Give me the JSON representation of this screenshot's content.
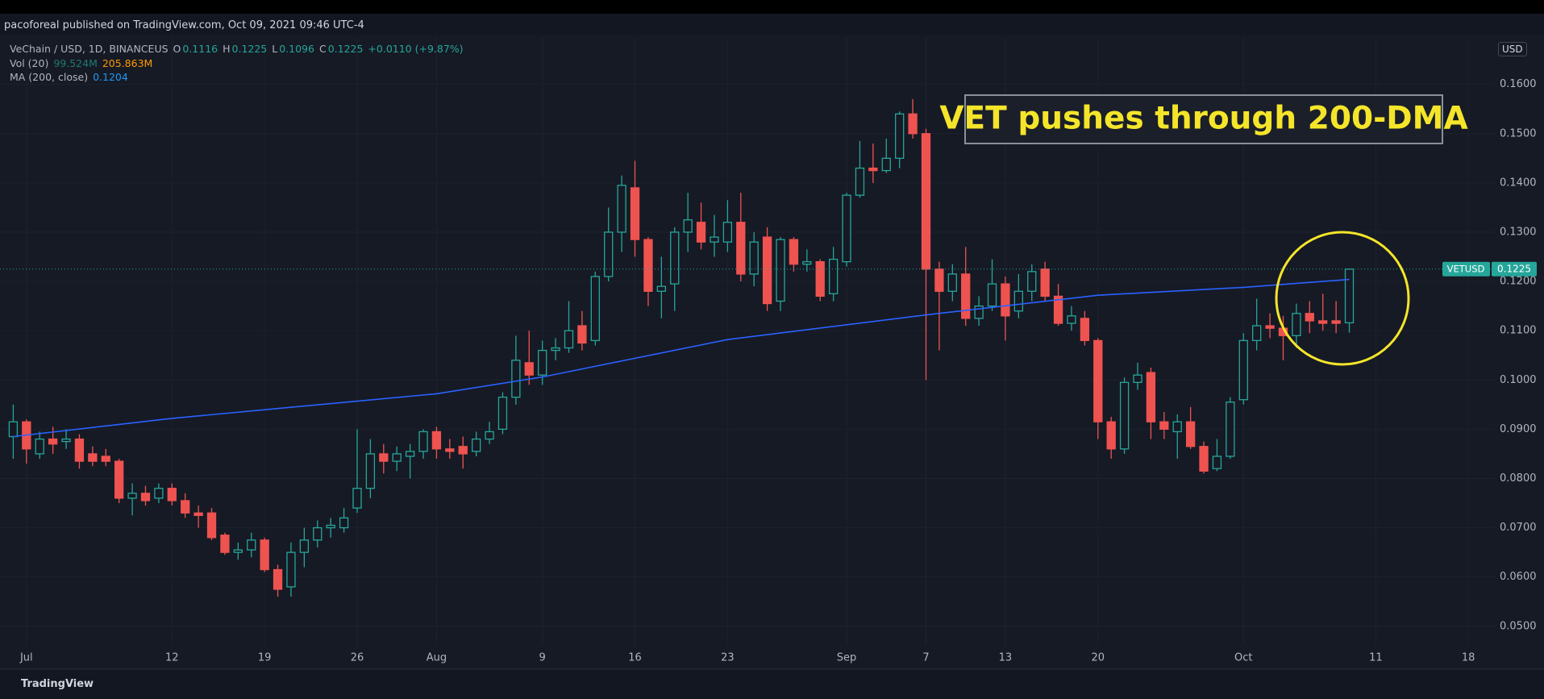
{
  "header": {
    "published": "pacoforeal published on TradingView.com, Oct 09, 2021 09:46 UTC-4",
    "symbol": "VeChain / USD, 1D, BINANCEUS",
    "ohlc_keys": [
      "O",
      "H",
      "L",
      "C"
    ],
    "change": "+0.0110 (+9.87%)",
    "volume_label": "Vol (20)",
    "volume_values": [
      "99.524M",
      "205.863M"
    ],
    "currency": "USD",
    "footer": "TradingView"
  },
  "chart_data": {
    "type": "candlestick",
    "annotation": "VET pushes through 200-DMA",
    "symbol_tag": "VETUSD",
    "up_color": "#26a69a",
    "down_color": "#ef5350",
    "grid": true,
    "x": [
      "2021-06-30",
      "2021-07-01",
      "2021-07-02",
      "2021-07-03",
      "2021-07-04",
      "2021-07-05",
      "2021-07-06",
      "2021-07-07",
      "2021-07-08",
      "2021-07-09",
      "2021-07-10",
      "2021-07-11",
      "2021-07-12",
      "2021-07-13",
      "2021-07-14",
      "2021-07-15",
      "2021-07-16",
      "2021-07-17",
      "2021-07-18",
      "2021-07-19",
      "2021-07-20",
      "2021-07-21",
      "2021-07-22",
      "2021-07-23",
      "2021-07-24",
      "2021-07-25",
      "2021-07-26",
      "2021-07-27",
      "2021-07-28",
      "2021-07-29",
      "2021-07-30",
      "2021-07-31",
      "2021-08-01",
      "2021-08-02",
      "2021-08-03",
      "2021-08-04",
      "2021-08-05",
      "2021-08-06",
      "2021-08-07",
      "2021-08-08",
      "2021-08-09",
      "2021-08-10",
      "2021-08-11",
      "2021-08-12",
      "2021-08-13",
      "2021-08-14",
      "2021-08-15",
      "2021-08-16",
      "2021-08-17",
      "2021-08-18",
      "2021-08-19",
      "2021-08-20",
      "2021-08-21",
      "2021-08-22",
      "2021-08-23",
      "2021-08-24",
      "2021-08-25",
      "2021-08-26",
      "2021-08-27",
      "2021-08-28",
      "2021-08-29",
      "2021-08-30",
      "2021-08-31",
      "2021-09-01",
      "2021-09-02",
      "2021-09-03",
      "2021-09-04",
      "2021-09-05",
      "2021-09-06",
      "2021-09-07",
      "2021-09-08",
      "2021-09-09",
      "2021-09-10",
      "2021-09-11",
      "2021-09-12",
      "2021-09-13",
      "2021-09-14",
      "2021-09-15",
      "2021-09-16",
      "2021-09-17",
      "2021-09-18",
      "2021-09-19",
      "2021-09-20",
      "2021-09-21",
      "2021-09-22",
      "2021-09-23",
      "2021-09-24",
      "2021-09-25",
      "2021-09-26",
      "2021-09-27",
      "2021-09-28",
      "2021-09-29",
      "2021-09-30",
      "2021-10-01",
      "2021-10-02",
      "2021-10-03",
      "2021-10-04",
      "2021-10-05",
      "2021-10-06",
      "2021-10-07",
      "2021-10-08",
      "2021-10-09"
    ],
    "open": [
      0.0885,
      0.0915,
      0.085,
      0.088,
      0.0875,
      0.088,
      0.085,
      0.0845,
      0.0835,
      0.076,
      0.077,
      0.076,
      0.078,
      0.0755,
      0.073,
      0.073,
      0.0685,
      0.065,
      0.0655,
      0.0675,
      0.0615,
      0.058,
      0.065,
      0.0675,
      0.07,
      0.07,
      0.074,
      0.078,
      0.085,
      0.0835,
      0.0845,
      0.0855,
      0.0895,
      0.086,
      0.0865,
      0.0855,
      0.088,
      0.09,
      0.0965,
      0.1035,
      0.101,
      0.106,
      0.1065,
      0.111,
      0.108,
      0.121,
      0.13,
      0.139,
      0.1285,
      0.118,
      0.1195,
      0.13,
      0.132,
      0.128,
      0.128,
      0.132,
      0.1215,
      0.129,
      0.116,
      0.1285,
      0.1235,
      0.124,
      0.1175,
      0.124,
      0.1375,
      0.143,
      0.1425,
      0.145,
      0.154,
      0.15,
      0.1225,
      0.118,
      0.1215,
      0.1125,
      0.115,
      0.1195,
      0.114,
      0.118,
      0.1225,
      0.117,
      0.1115,
      0.1125,
      0.108,
      0.0915,
      0.086,
      0.0995,
      0.1015,
      0.0915,
      0.0895,
      0.0915,
      0.0865,
      0.082,
      0.0845,
      0.096,
      0.108,
      0.111,
      0.1105,
      0.109,
      0.1135,
      0.112,
      0.112,
      0.1116
    ],
    "high": [
      0.095,
      0.092,
      0.0895,
      0.0905,
      0.09,
      0.089,
      0.0865,
      0.086,
      0.084,
      0.079,
      0.0785,
      0.079,
      0.079,
      0.077,
      0.0745,
      0.074,
      0.069,
      0.067,
      0.069,
      0.068,
      0.0625,
      0.067,
      0.07,
      0.0715,
      0.072,
      0.074,
      0.09,
      0.088,
      0.087,
      0.0865,
      0.087,
      0.09,
      0.0905,
      0.088,
      0.0885,
      0.0895,
      0.0915,
      0.0975,
      0.109,
      0.11,
      0.108,
      0.1085,
      0.116,
      0.114,
      0.122,
      0.135,
      0.1415,
      0.1445,
      0.129,
      0.125,
      0.131,
      0.138,
      0.136,
      0.1335,
      0.1365,
      0.138,
      0.13,
      0.131,
      0.129,
      0.129,
      0.1265,
      0.1245,
      0.127,
      0.138,
      0.1485,
      0.148,
      0.149,
      0.1545,
      0.157,
      0.151,
      0.124,
      0.1235,
      0.127,
      0.117,
      0.1245,
      0.121,
      0.1215,
      0.1235,
      0.124,
      0.1195,
      0.115,
      0.114,
      0.1085,
      0.0925,
      0.1005,
      0.1035,
      0.1025,
      0.0935,
      0.093,
      0.0945,
      0.0875,
      0.088,
      0.0965,
      0.1095,
      0.1165,
      0.1135,
      0.113,
      0.1155,
      0.116,
      0.1175,
      0.116,
      0.1225
    ],
    "low": [
      0.084,
      0.083,
      0.084,
      0.085,
      0.086,
      0.082,
      0.0825,
      0.0825,
      0.075,
      0.0725,
      0.0745,
      0.075,
      0.0745,
      0.072,
      0.07,
      0.0675,
      0.0645,
      0.0635,
      0.064,
      0.061,
      0.056,
      0.056,
      0.062,
      0.066,
      0.068,
      0.069,
      0.073,
      0.076,
      0.081,
      0.0815,
      0.08,
      0.084,
      0.084,
      0.084,
      0.082,
      0.0845,
      0.087,
      0.089,
      0.095,
      0.099,
      0.099,
      0.104,
      0.1055,
      0.106,
      0.107,
      0.12,
      0.126,
      0.125,
      0.115,
      0.1125,
      0.114,
      0.126,
      0.1265,
      0.125,
      0.126,
      0.12,
      0.119,
      0.114,
      0.114,
      0.122,
      0.122,
      0.116,
      0.116,
      0.123,
      0.137,
      0.14,
      0.142,
      0.143,
      0.149,
      0.1,
      0.106,
      0.116,
      0.111,
      0.111,
      0.114,
      0.108,
      0.1125,
      0.116,
      0.116,
      0.111,
      0.11,
      0.107,
      0.088,
      0.084,
      0.085,
      0.098,
      0.088,
      0.088,
      0.084,
      0.086,
      0.081,
      0.0815,
      0.084,
      0.095,
      0.106,
      0.1085,
      0.104,
      0.1065,
      0.1095,
      0.11,
      0.1095,
      0.1096
    ],
    "close": [
      0.0915,
      0.086,
      0.088,
      0.087,
      0.088,
      0.0835,
      0.0835,
      0.0835,
      0.076,
      0.077,
      0.0755,
      0.078,
      0.0755,
      0.073,
      0.0725,
      0.068,
      0.065,
      0.0655,
      0.0675,
      0.0615,
      0.0575,
      0.065,
      0.0675,
      0.07,
      0.0705,
      0.072,
      0.078,
      0.085,
      0.0835,
      0.085,
      0.0855,
      0.0895,
      0.086,
      0.0855,
      0.085,
      0.088,
      0.0895,
      0.0965,
      0.104,
      0.101,
      0.106,
      0.1065,
      0.11,
      0.1075,
      0.121,
      0.13,
      0.1395,
      0.1285,
      0.118,
      0.119,
      0.13,
      0.1325,
      0.128,
      0.129,
      0.132,
      0.1215,
      0.128,
      0.1155,
      0.1285,
      0.1235,
      0.124,
      0.117,
      0.1245,
      0.1375,
      0.143,
      0.1425,
      0.145,
      0.154,
      0.15,
      0.1225,
      0.118,
      0.1215,
      0.1125,
      0.115,
      0.1195,
      0.113,
      0.118,
      0.122,
      0.117,
      0.1115,
      0.113,
      0.108,
      0.0915,
      0.086,
      0.0995,
      0.101,
      0.0915,
      0.09,
      0.0915,
      0.0865,
      0.0815,
      0.0845,
      0.0955,
      0.108,
      0.111,
      0.1105,
      0.109,
      0.1135,
      0.112,
      0.1115,
      0.1115,
      0.1225
    ],
    "ma": {
      "name": "MA (200, close)",
      "color": "#2962ff",
      "x": [
        "2021-06-30",
        "2021-07-12",
        "2021-08-01",
        "2021-08-09",
        "2021-08-23",
        "2021-09-07",
        "2021-09-20",
        "2021-10-01",
        "2021-10-09"
      ],
      "values": [
        0.0885,
        0.0922,
        0.0972,
        0.1006,
        0.1082,
        0.1132,
        0.1172,
        0.1188,
        0.1204
      ]
    },
    "xlim": [
      "2021-06-29",
      "2021-10-20"
    ],
    "ylim": [
      0.0462,
      0.1696
    ],
    "xticks": [
      {
        "value": "2021-07-01",
        "label": "Jul"
      },
      {
        "value": "2021-07-12",
        "label": "12"
      },
      {
        "value": "2021-07-19",
        "label": "19"
      },
      {
        "value": "2021-07-26",
        "label": "26"
      },
      {
        "value": "2021-08-01",
        "label": "Aug"
      },
      {
        "value": "2021-08-09",
        "label": "9"
      },
      {
        "value": "2021-08-16",
        "label": "16"
      },
      {
        "value": "2021-08-23",
        "label": "23"
      },
      {
        "value": "2021-09-01",
        "label": "Sep"
      },
      {
        "value": "2021-09-07",
        "label": "7"
      },
      {
        "value": "2021-09-13",
        "label": "13"
      },
      {
        "value": "2021-09-20",
        "label": "20"
      },
      {
        "value": "2021-10-01",
        "label": "Oct"
      },
      {
        "value": "2021-10-11",
        "label": "11"
      },
      {
        "value": "2021-10-18",
        "label": "18"
      }
    ],
    "yticks": [
      {
        "value": 0.05,
        "label": "0.0500"
      },
      {
        "value": 0.06,
        "label": "0.0600"
      },
      {
        "value": 0.07,
        "label": "0.0700"
      },
      {
        "value": 0.08,
        "label": "0.0800"
      },
      {
        "value": 0.09,
        "label": "0.0900"
      },
      {
        "value": 0.1,
        "label": "0.1000"
      },
      {
        "value": 0.11,
        "label": "0.1100"
      },
      {
        "value": 0.12,
        "label": "0.1200"
      },
      {
        "value": 0.13,
        "label": "0.1300"
      },
      {
        "value": 0.14,
        "label": "0.1400"
      },
      {
        "value": 0.15,
        "label": "0.1500"
      },
      {
        "value": 0.16,
        "label": "0.1600"
      }
    ]
  }
}
